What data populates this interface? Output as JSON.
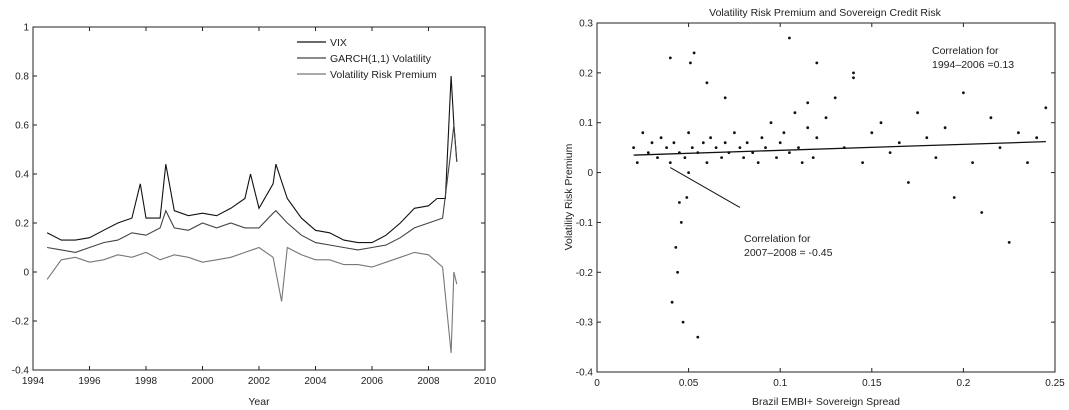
{
  "chart_data": [
    {
      "type": "line",
      "title": "",
      "xlabel": "Year",
      "ylabel": "",
      "xlim": [
        1994,
        2010
      ],
      "ylim": [
        -0.4,
        1.0
      ],
      "xticks": [
        1994,
        1996,
        1998,
        2000,
        2002,
        2004,
        2006,
        2008,
        2010
      ],
      "yticks": [
        -0.4,
        -0.2,
        0,
        0.2,
        0.4,
        0.6,
        0.8,
        1
      ],
      "legend": {
        "placement": "top-right",
        "entries": [
          "VIX",
          "GARCH(1,1) Volatility",
          "Volatility Risk Premium"
        ]
      },
      "grid": false,
      "series": [
        {
          "name": "VIX",
          "color": "#111111",
          "x": [
            1994.5,
            1995,
            1995.5,
            1996,
            1996.5,
            1997,
            1997.5,
            1997.8,
            1998,
            1998.5,
            1998.7,
            1999,
            1999.5,
            2000,
            2000.5,
            2001,
            2001.5,
            2001.7,
            2002,
            2002.5,
            2002.6,
            2003,
            2003.5,
            2004,
            2004.5,
            2005,
            2005.5,
            2006,
            2006.5,
            2007,
            2007.5,
            2008,
            2008.3,
            2008.6,
            2008.8,
            2008.9,
            2009
          ],
          "y": [
            0.16,
            0.13,
            0.13,
            0.14,
            0.17,
            0.2,
            0.22,
            0.36,
            0.22,
            0.22,
            0.44,
            0.25,
            0.23,
            0.24,
            0.23,
            0.26,
            0.3,
            0.4,
            0.26,
            0.36,
            0.44,
            0.3,
            0.22,
            0.17,
            0.16,
            0.13,
            0.12,
            0.12,
            0.15,
            0.2,
            0.26,
            0.27,
            0.3,
            0.3,
            0.8,
            0.6,
            0.45
          ]
        },
        {
          "name": "GARCH(1,1) Volatility",
          "color": "#444444",
          "x": [
            1994.5,
            1995,
            1995.5,
            1996,
            1996.5,
            1997,
            1997.5,
            1998,
            1998.5,
            1998.7,
            1999,
            1999.5,
            2000,
            2000.5,
            2001,
            2001.5,
            2002,
            2002.5,
            2002.6,
            2003,
            2003.5,
            2004,
            2004.5,
            2005,
            2005.5,
            2006,
            2006.5,
            2007,
            2007.5,
            2008,
            2008.5,
            2008.8,
            2008.9,
            2009
          ],
          "y": [
            0.1,
            0.09,
            0.08,
            0.1,
            0.12,
            0.13,
            0.16,
            0.15,
            0.18,
            0.25,
            0.18,
            0.17,
            0.2,
            0.18,
            0.2,
            0.18,
            0.18,
            0.24,
            0.25,
            0.2,
            0.15,
            0.12,
            0.11,
            0.1,
            0.09,
            0.1,
            0.11,
            0.14,
            0.18,
            0.2,
            0.22,
            0.5,
            0.6,
            0.45
          ]
        },
        {
          "name": "Volatility Risk Premium",
          "color": "#777777",
          "x": [
            1994.5,
            1995,
            1995.5,
            1996,
            1996.5,
            1997,
            1997.5,
            1998,
            1998.5,
            1999,
            1999.5,
            2000,
            2000.5,
            2001,
            2001.5,
            2002,
            2002.5,
            2002.8,
            2003,
            2003.5,
            2004,
            2004.5,
            2005,
            2005.5,
            2006,
            2006.5,
            2007,
            2007.5,
            2008,
            2008.5,
            2008.8,
            2008.9,
            2009
          ],
          "y": [
            -0.03,
            0.05,
            0.06,
            0.04,
            0.05,
            0.07,
            0.06,
            0.08,
            0.05,
            0.07,
            0.06,
            0.04,
            0.05,
            0.06,
            0.08,
            0.1,
            0.06,
            -0.12,
            0.1,
            0.07,
            0.05,
            0.05,
            0.03,
            0.03,
            0.02,
            0.04,
            0.06,
            0.08,
            0.07,
            0.02,
            -0.33,
            0.0,
            -0.05
          ]
        }
      ]
    },
    {
      "type": "scatter",
      "title": "Volatility Risk Premium and Sovereign Credit Risk",
      "xlabel": "Brazil EMBI+ Sovereign Spread",
      "ylabel": "Volatility Risk Premium",
      "xlim": [
        0,
        0.25
      ],
      "ylim": [
        -0.4,
        0.3
      ],
      "xticks": [
        0,
        0.05,
        0.1,
        0.15,
        0.2,
        0.25
      ],
      "yticks": [
        -0.4,
        -0.3,
        -0.2,
        -0.1,
        0,
        0.1,
        0.2,
        0.3
      ],
      "grid": false,
      "annotations": [
        {
          "text": [
            "Correlation for",
            "1994–2006 =0.13"
          ]
        },
        {
          "text": [
            "Correlation for",
            "2007–2008 = -0.45"
          ]
        }
      ],
      "fit_lines": [
        {
          "x": [
            0.02,
            0.245
          ],
          "y": [
            0.035,
            0.062
          ]
        },
        {
          "x": [
            0.04,
            0.078
          ],
          "y": [
            0.01,
            -0.07
          ]
        }
      ],
      "points": {
        "x": [
          0.02,
          0.022,
          0.025,
          0.028,
          0.03,
          0.033,
          0.035,
          0.038,
          0.04,
          0.042,
          0.045,
          0.048,
          0.05,
          0.052,
          0.055,
          0.058,
          0.06,
          0.062,
          0.065,
          0.068,
          0.07,
          0.072,
          0.075,
          0.078,
          0.08,
          0.082,
          0.085,
          0.088,
          0.09,
          0.092,
          0.095,
          0.098,
          0.1,
          0.102,
          0.105,
          0.108,
          0.11,
          0.112,
          0.115,
          0.118,
          0.12,
          0.125,
          0.13,
          0.135,
          0.14,
          0.145,
          0.15,
          0.155,
          0.16,
          0.165,
          0.17,
          0.175,
          0.18,
          0.185,
          0.19,
          0.195,
          0.2,
          0.205,
          0.21,
          0.215,
          0.22,
          0.225,
          0.23,
          0.235,
          0.24,
          0.245,
          0.041,
          0.043,
          0.044,
          0.046,
          0.047,
          0.049,
          0.051,
          0.053,
          0.04,
          0.045,
          0.05,
          0.055,
          0.105,
          0.12,
          0.14,
          0.06,
          0.07,
          0.115
        ],
        "y": [
          0.05,
          0.02,
          0.08,
          0.04,
          0.06,
          0.03,
          0.07,
          0.05,
          0.02,
          0.06,
          0.04,
          0.03,
          0.08,
          0.05,
          0.04,
          0.06,
          0.02,
          0.07,
          0.05,
          0.03,
          0.06,
          0.04,
          0.08,
          0.05,
          0.03,
          0.06,
          0.04,
          0.02,
          0.07,
          0.05,
          0.1,
          0.03,
          0.06,
          0.08,
          0.04,
          0.12,
          0.05,
          0.02,
          0.09,
          0.03,
          0.07,
          0.11,
          0.15,
          0.05,
          0.19,
          0.02,
          0.08,
          0.1,
          0.04,
          0.06,
          -0.02,
          0.12,
          0.07,
          0.03,
          0.09,
          -0.05,
          0.16,
          0.02,
          -0.08,
          0.11,
          0.05,
          -0.14,
          0.08,
          0.02,
          0.07,
          0.13,
          -0.26,
          -0.15,
          -0.2,
          -0.1,
          -0.3,
          -0.05,
          0.22,
          0.24,
          0.23,
          -0.06,
          0.0,
          -0.33,
          0.27,
          0.22,
          0.2,
          0.18,
          0.15,
          0.14
        ]
      }
    }
  ]
}
